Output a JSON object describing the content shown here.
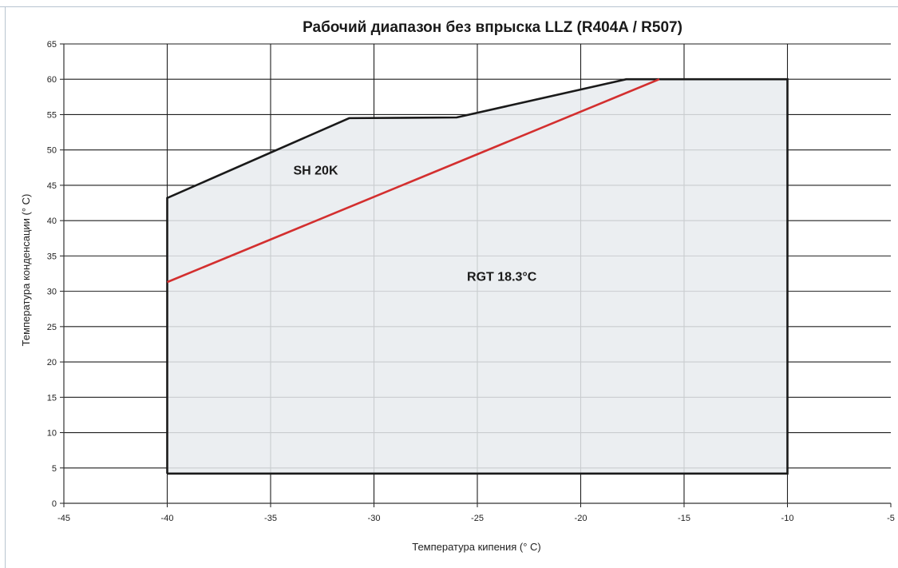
{
  "chart_data": {
    "type": "area",
    "title": "Рабочий диапазон без впрыска LLZ (R404A / R507)",
    "xlabel": "Температура кипения (° C)",
    "ylabel": "Температура конденсации (° C)",
    "xlim": [
      -45,
      -5
    ],
    "ylim": [
      0,
      65
    ],
    "x_ticks": [
      -45,
      -40,
      -35,
      -30,
      -25,
      -20,
      -15,
      -10,
      -5
    ],
    "y_ticks": [
      0,
      5,
      10,
      15,
      20,
      25,
      30,
      35,
      40,
      45,
      50,
      55,
      60,
      65
    ],
    "grid": true,
    "envelope": {
      "x": [
        -40,
        -40,
        -31.2,
        -26,
        -17.8,
        -10,
        -10,
        -40
      ],
      "y": [
        4.2,
        43.2,
        54.5,
        54.6,
        60,
        60,
        4.2,
        4.2
      ]
    },
    "series": [
      {
        "name": "RGT 18.3°C",
        "x": [
          -40,
          -16.2
        ],
        "y": [
          31.3,
          60
        ]
      }
    ],
    "annotations": [
      {
        "text": "SH 20K",
        "x": -33.9,
        "y": 46.5
      },
      {
        "text": "RGT 18.3°C",
        "x": -25.5,
        "y": 31.5
      }
    ],
    "colors": {
      "fill": "#e7ebee",
      "envelope_line": "#1a1a1a",
      "series_line": "#d32f2f",
      "grid": "#1e1e1e"
    }
  }
}
